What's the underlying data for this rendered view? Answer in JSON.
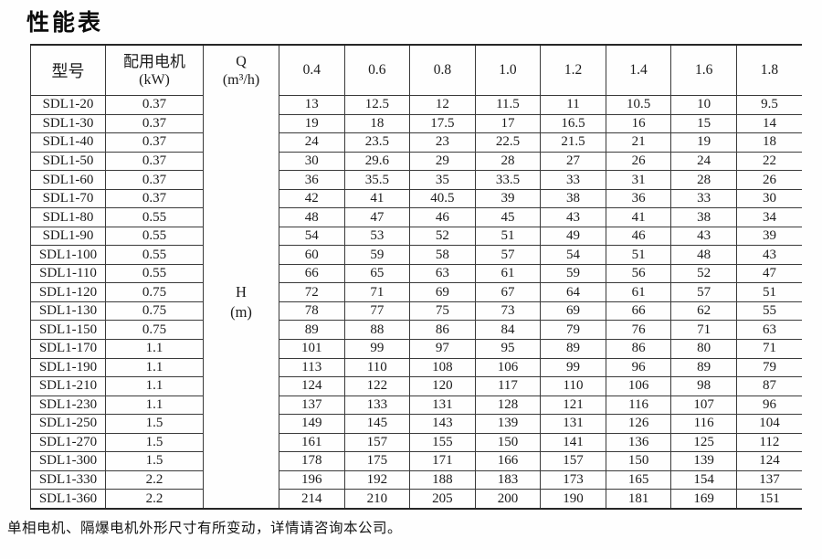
{
  "page": {
    "title": "性能表",
    "footnote": "单相电机、隔爆电机外形尺寸有所变动，详情请咨询本公司。"
  },
  "table": {
    "col_model": "型号",
    "col_motor_line1": "配用电机",
    "col_motor_line2": "(kW)",
    "col_q_line1": "Q",
    "col_q_line2": "(m³/h)",
    "col_h_line1": "H",
    "col_h_line2": "(m)",
    "flow_values": [
      "0.4",
      "0.6",
      "0.8",
      "1.0",
      "1.2",
      "1.4",
      "1.6",
      "1.8"
    ],
    "rows": [
      {
        "model": "SDL1-20",
        "kw": "0.37",
        "h": [
          "13",
          "12.5",
          "12",
          "11.5",
          "11",
          "10.5",
          "10",
          "9.5"
        ]
      },
      {
        "model": "SDL1-30",
        "kw": "0.37",
        "h": [
          "19",
          "18",
          "17.5",
          "17",
          "16.5",
          "16",
          "15",
          "14"
        ]
      },
      {
        "model": "SDL1-40",
        "kw": "0.37",
        "h": [
          "24",
          "23.5",
          "23",
          "22.5",
          "21.5",
          "21",
          "19",
          "18"
        ]
      },
      {
        "model": "SDL1-50",
        "kw": "0.37",
        "h": [
          "30",
          "29.6",
          "29",
          "28",
          "27",
          "26",
          "24",
          "22"
        ]
      },
      {
        "model": "SDL1-60",
        "kw": "0.37",
        "h": [
          "36",
          "35.5",
          "35",
          "33.5",
          "33",
          "31",
          "28",
          "26"
        ]
      },
      {
        "model": "SDL1-70",
        "kw": "0.37",
        "h": [
          "42",
          "41",
          "40.5",
          "39",
          "38",
          "36",
          "33",
          "30"
        ]
      },
      {
        "model": "SDL1-80",
        "kw": "0.55",
        "h": [
          "48",
          "47",
          "46",
          "45",
          "43",
          "41",
          "38",
          "34"
        ]
      },
      {
        "model": "SDL1-90",
        "kw": "0.55",
        "h": [
          "54",
          "53",
          "52",
          "51",
          "49",
          "46",
          "43",
          "39"
        ]
      },
      {
        "model": "SDL1-100",
        "kw": "0.55",
        "h": [
          "60",
          "59",
          "58",
          "57",
          "54",
          "51",
          "48",
          "43"
        ]
      },
      {
        "model": "SDL1-110",
        "kw": "0.55",
        "h": [
          "66",
          "65",
          "63",
          "61",
          "59",
          "56",
          "52",
          "47"
        ]
      },
      {
        "model": "SDL1-120",
        "kw": "0.75",
        "h": [
          "72",
          "71",
          "69",
          "67",
          "64",
          "61",
          "57",
          "51"
        ]
      },
      {
        "model": "SDL1-130",
        "kw": "0.75",
        "h": [
          "78",
          "77",
          "75",
          "73",
          "69",
          "66",
          "62",
          "55"
        ]
      },
      {
        "model": "SDL1-150",
        "kw": "0.75",
        "h": [
          "89",
          "88",
          "86",
          "84",
          "79",
          "76",
          "71",
          "63"
        ]
      },
      {
        "model": "SDL1-170",
        "kw": "1.1",
        "h": [
          "101",
          "99",
          "97",
          "95",
          "89",
          "86",
          "80",
          "71"
        ]
      },
      {
        "model": "SDL1-190",
        "kw": "1.1",
        "h": [
          "113",
          "110",
          "108",
          "106",
          "99",
          "96",
          "89",
          "79"
        ]
      },
      {
        "model": "SDL1-210",
        "kw": "1.1",
        "h": [
          "124",
          "122",
          "120",
          "117",
          "110",
          "106",
          "98",
          "87"
        ]
      },
      {
        "model": "SDL1-230",
        "kw": "1.1",
        "h": [
          "137",
          "133",
          "131",
          "128",
          "121",
          "116",
          "107",
          "96"
        ]
      },
      {
        "model": "SDL1-250",
        "kw": "1.5",
        "h": [
          "149",
          "145",
          "143",
          "139",
          "131",
          "126",
          "116",
          "104"
        ]
      },
      {
        "model": "SDL1-270",
        "kw": "1.5",
        "h": [
          "161",
          "157",
          "155",
          "150",
          "141",
          "136",
          "125",
          "112"
        ]
      },
      {
        "model": "SDL1-300",
        "kw": "1.5",
        "h": [
          "178",
          "175",
          "171",
          "166",
          "157",
          "150",
          "139",
          "124"
        ]
      },
      {
        "model": "SDL1-330",
        "kw": "2.2",
        "h": [
          "196",
          "192",
          "188",
          "183",
          "173",
          "165",
          "154",
          "137"
        ]
      },
      {
        "model": "SDL1-360",
        "kw": "2.2",
        "h": [
          "214",
          "210",
          "205",
          "200",
          "190",
          "181",
          "169",
          "151"
        ]
      }
    ]
  }
}
